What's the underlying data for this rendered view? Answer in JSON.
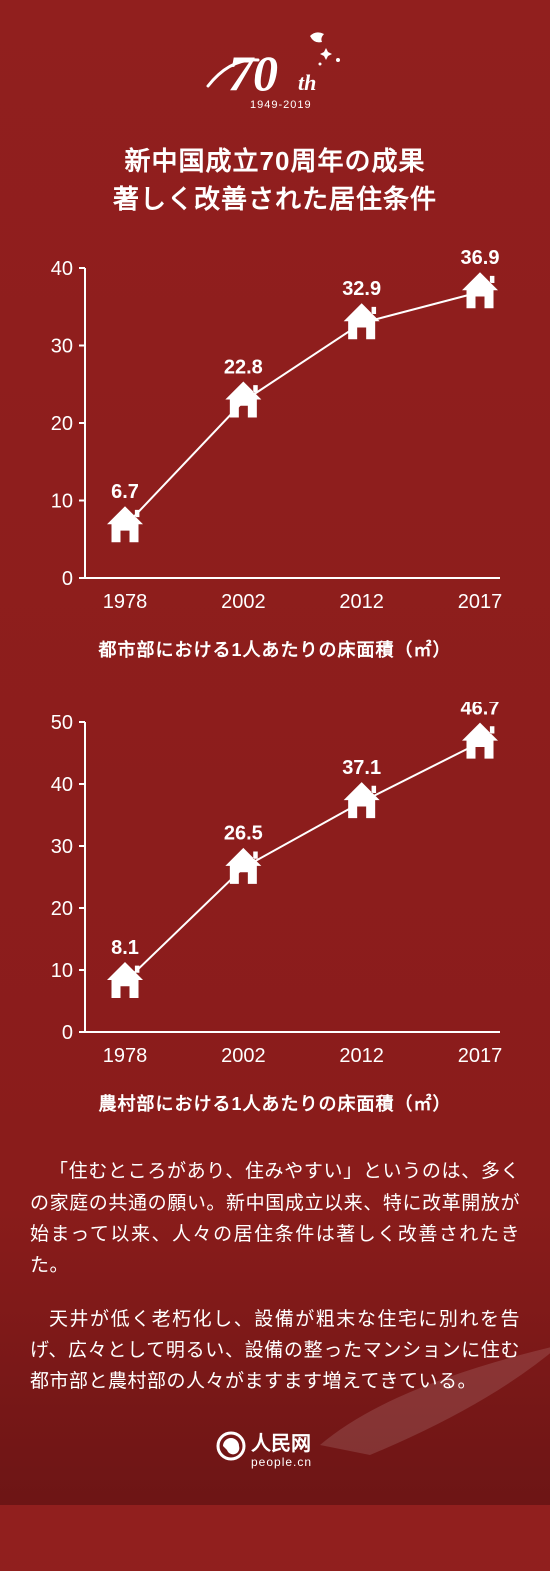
{
  "background_color": "#8f1e1d",
  "text_color": "#ffffff",
  "logo": {
    "main_number": "70",
    "suffix": "th",
    "years": "1949-2019"
  },
  "headline_line1": "新中国成立70周年の成果",
  "headline_line2": "著しく改善された居住条件",
  "chart1": {
    "type": "line",
    "caption": "都市部における1人あたりの床面積（㎡）",
    "categories": [
      "1978",
      "2002",
      "2012",
      "2017"
    ],
    "values": [
      6.7,
      22.8,
      32.9,
      36.9
    ],
    "value_labels": [
      "6.7",
      "22.8",
      "32.9",
      "36.9"
    ],
    "ylim": [
      0,
      40
    ],
    "ytick_step": 10,
    "line_color": "#ffffff",
    "line_width": 2,
    "marker": "house",
    "marker_color": "#ffffff",
    "axis_color": "#ffffff",
    "tick_fontsize": 20,
    "label_fontsize": 20,
    "caption_fontsize": 18
  },
  "chart2": {
    "type": "line",
    "caption": "農村部における1人あたりの床面積（㎡）",
    "categories": [
      "1978",
      "2002",
      "2012",
      "2017"
    ],
    "values": [
      8.1,
      26.5,
      37.1,
      46.7
    ],
    "value_labels": [
      "8.1",
      "26.5",
      "37.1",
      "46.7"
    ],
    "ylim": [
      0,
      50
    ],
    "ytick_step": 10,
    "line_color": "#ffffff",
    "line_width": 2,
    "marker": "house",
    "marker_color": "#ffffff",
    "axis_color": "#ffffff",
    "tick_fontsize": 20,
    "label_fontsize": 20,
    "caption_fontsize": 18
  },
  "paragraph1": "「住むところがあり、住みやすい」というのは、多くの家庭の共通の願い。新中国成立以来、特に改革開放が始まって以来、人々の居住条件は著しく改善されたきた。",
  "paragraph2": "天井が低く老朽化し、設備が粗末な住宅に別れを告げ、広々として明るい、設備の整ったマンションに住む都市部と農村部の人々がますます増えてきている。",
  "footer": {
    "brand_cn": "人民网",
    "brand_en": "people.cn"
  }
}
